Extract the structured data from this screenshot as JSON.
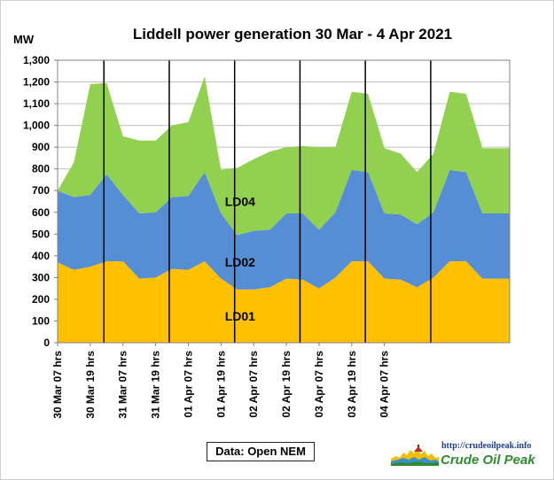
{
  "chart_data": {
    "type": "area",
    "title": "Liddell power generation  30 Mar  - 4 Apr 2021",
    "ylabel": "MW",
    "xlabel": "",
    "ylim": [
      0,
      1300
    ],
    "yticks": [
      "0",
      "100",
      "200",
      "300",
      "400",
      "500",
      "600",
      "700",
      "800",
      "900",
      "1,000",
      "1,100",
      "1,200",
      "1,300"
    ],
    "xticks": [
      "30 Mar 07 hrs",
      "30 Mar 19 hrs",
      "31 Mar 07 hrs",
      "31 Mar 19 hrs",
      "01 Apr 07 hrs",
      "01 Apr 19 hrs",
      "02 Apr 07 hrs",
      "02 Apr 19 hrs",
      "03 Apr 07 hrs",
      "03 Apr 19 hrs",
      "04 Apr 07 hrs"
    ],
    "x_hours": [
      0,
      6,
      12,
      18,
      24,
      30,
      36,
      42,
      48,
      54,
      60,
      66,
      72,
      78,
      84,
      90,
      96,
      102,
      108,
      114,
      120,
      126,
      132,
      138,
      144,
      150,
      156,
      162,
      166
    ],
    "stacked": true,
    "grid": "horizontal",
    "day_separators_hours": [
      17,
      41,
      65,
      89,
      113,
      137
    ],
    "series": [
      {
        "name": "LD01",
        "color": "#FFC000",
        "values": [
          370,
          335,
          350,
          375,
          375,
          295,
          300,
          340,
          335,
          375,
          295,
          245,
          245,
          255,
          295,
          290,
          250,
          300,
          375,
          375,
          295,
          290,
          255,
          300,
          375,
          375,
          295,
          295,
          295
        ]
      },
      {
        "name": "LD02",
        "color": "#558ED5",
        "values": [
          330,
          335,
          330,
          400,
          305,
          300,
          300,
          330,
          340,
          410,
          300,
          250,
          270,
          265,
          300,
          305,
          270,
          300,
          420,
          410,
          300,
          300,
          290,
          300,
          420,
          410,
          300,
          300,
          300
        ]
      },
      {
        "name": "LD04",
        "color": "#92D050",
        "values": [
          0,
          160,
          510,
          420,
          270,
          335,
          330,
          330,
          340,
          440,
          200,
          310,
          330,
          360,
          305,
          310,
          380,
          300,
          360,
          360,
          300,
          280,
          240,
          270,
          360,
          360,
          300,
          300,
          300
        ]
      }
    ],
    "source": "Data: Open NEM",
    "logo": {
      "url": "http://crudeoilpeak.info",
      "name": "Crude Oil Peak"
    }
  }
}
